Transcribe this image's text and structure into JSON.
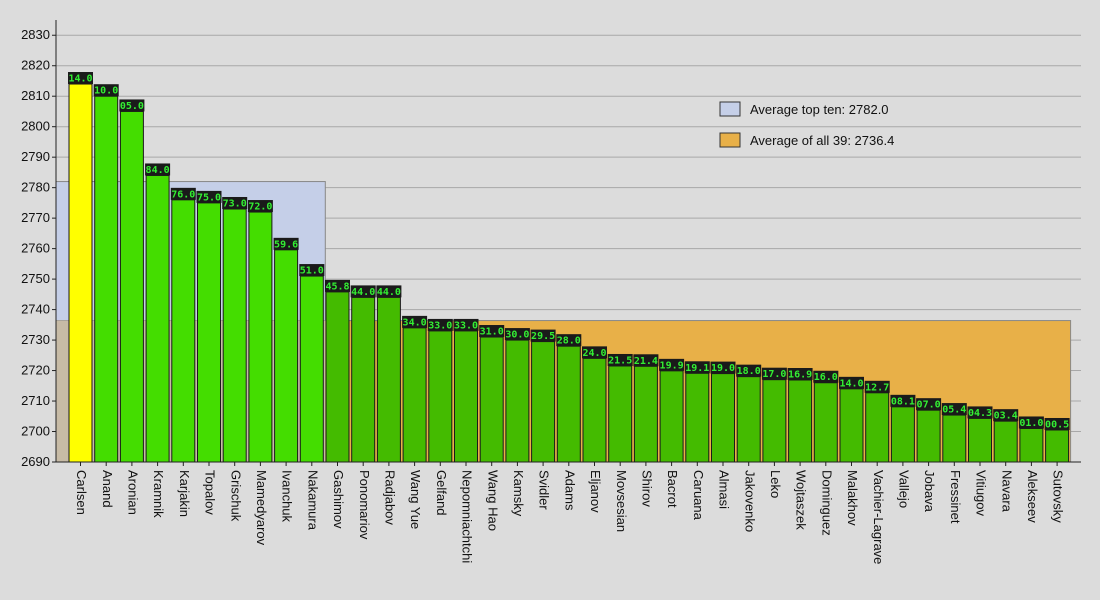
{
  "chart_data": {
    "type": "bar",
    "title": "",
    "xlabel": "",
    "ylabel": "",
    "ylim": [
      2690,
      2835
    ],
    "yticks": [
      2690,
      2700,
      2710,
      2720,
      2730,
      2740,
      2750,
      2760,
      2770,
      2780,
      2790,
      2800,
      2810,
      2820,
      2830
    ],
    "grid": true,
    "legend_position": "top-right",
    "categories": [
      "Carlsen",
      "Anand",
      "Aronian",
      "Kramnik",
      "Karjakin",
      "Topalov",
      "Grischuk",
      "Mamedyarov",
      "Ivanchuk",
      "Nakamura",
      "Gashimov",
      "Ponomariov",
      "Radjabov",
      "Wang Yue",
      "Gelfand",
      "Nepomniachtchi",
      "Wang Hao",
      "Kamsky",
      "Svidler",
      "Adams",
      "Eljanov",
      "Movsesian",
      "Shirov",
      "Bacrot",
      "Caruana",
      "Almasi",
      "Jakovenko",
      "Leko",
      "Wojtaszek",
      "Dominguez",
      "Malakhov",
      "Vachier-Lagrave",
      "Vallejo",
      "Jobava",
      "Fressinet",
      "Vitiugov",
      "Navara",
      "Alekseev",
      "Sutovsky"
    ],
    "values": [
      2814.0,
      2810.0,
      2805.0,
      2784.0,
      2776.0,
      2775.0,
      2773.0,
      2772.0,
      2759.6,
      2751.0,
      2745.8,
      2744.0,
      2744.0,
      2734.0,
      2733.0,
      2733.0,
      2731.0,
      2730.0,
      2729.5,
      2728.0,
      2724.0,
      2721.5,
      2721.4,
      2719.9,
      2719.1,
      2719.0,
      2718.0,
      2717.0,
      2716.9,
      2716.0,
      2714.0,
      2712.7,
      2708.1,
      2707.0,
      2705.4,
      2704.3,
      2703.4,
      2701.0,
      2700.5
    ],
    "value_labels": [
      "14.0",
      "10.0",
      "05.0",
      "84.0",
      "76.0",
      "75.0",
      "73.0",
      "72.0",
      "59.6",
      "51.0",
      "45.8",
      "44.0",
      "44.0",
      "34.0",
      "33.0",
      "33.0",
      "31.0",
      "30.0",
      "29.5",
      "28.0",
      "24.0",
      "21.5",
      "21.4",
      "19.9",
      "19.1",
      "19.0",
      "18.0",
      "17.0",
      "16.9",
      "16.0",
      "14.0",
      "12.7",
      "08.1",
      "07.0",
      "05.4",
      "04.3",
      "03.4",
      "01.0",
      "00.5"
    ],
    "bar_colors": {
      "top": "#ffff00",
      "top_ten": "#44dd00",
      "rest": "#44bb00"
    },
    "label_bg_color": "#1a1a1a",
    "label_text_color": "#33ee33",
    "averages": [
      {
        "name": "Average top ten: 2782.0",
        "value": 2782.0,
        "span": [
          0,
          9
        ],
        "color": "#c5cfe8"
      },
      {
        "name": "Average of all 39: 2736.4",
        "value": 2736.4,
        "span": [
          0,
          38
        ],
        "color": "#e8b048"
      }
    ]
  }
}
